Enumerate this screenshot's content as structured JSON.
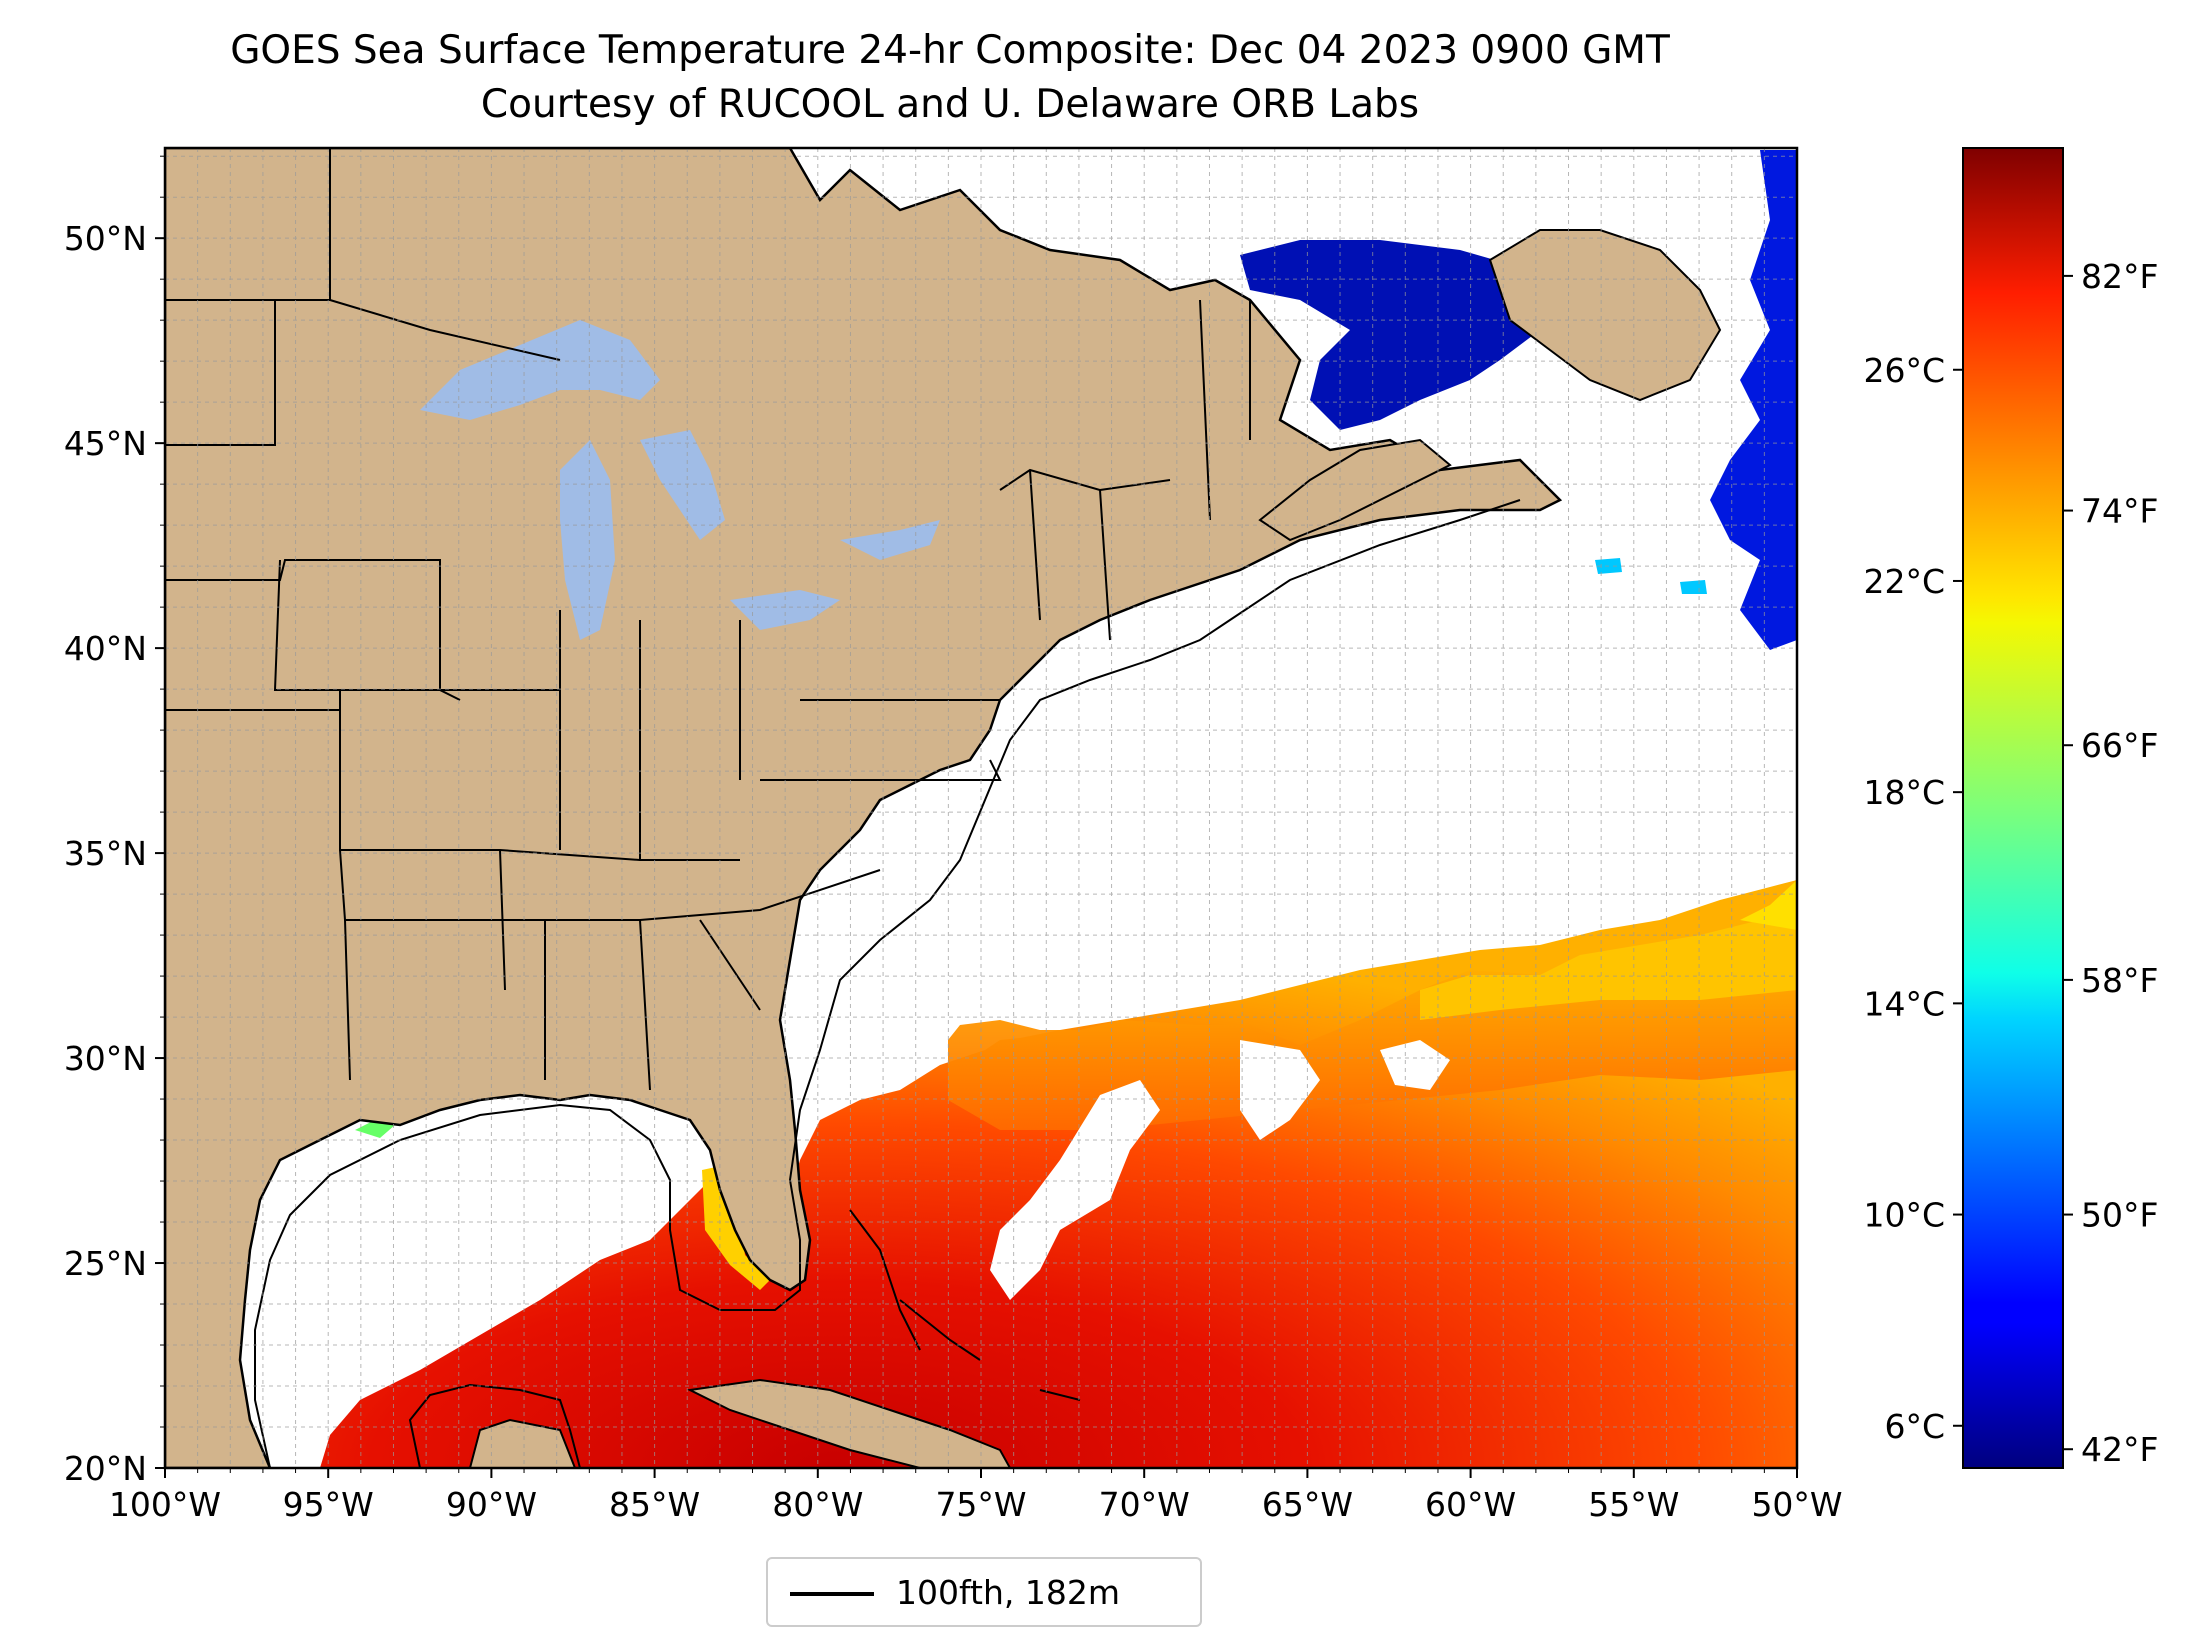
{
  "title": {
    "line1": "GOES Sea Surface Temperature 24-hr Composite: Dec 04 2023 0900 GMT",
    "line2": "Courtesy of RUCOOL and U. Delaware ORB Labs"
  },
  "map": {
    "lon_range": [
      -100,
      -50
    ],
    "lat_range": [
      20,
      52.2
    ],
    "x_ticks": [
      "100°W",
      "95°W",
      "90°W",
      "85°W",
      "80°W",
      "75°W",
      "70°W",
      "65°W",
      "60°W",
      "55°W",
      "50°W"
    ],
    "y_ticks": [
      "20°N",
      "25°N",
      "30°N",
      "35°N",
      "40°N",
      "45°N",
      "50°N"
    ],
    "y_tick_values": [
      20,
      25,
      30,
      35,
      40,
      45,
      50
    ],
    "gridlines": true,
    "land_color": "#d2b48c",
    "lake_color": "#a0bce6",
    "ocean_nodata_color": "#ffffff"
  },
  "colorbar": {
    "colormap": "jet",
    "celsius_ticks": [
      "6°C",
      "10°C",
      "14°C",
      "18°C",
      "22°C",
      "26°C"
    ],
    "celsius_values": [
      6,
      10,
      14,
      18,
      22,
      26
    ],
    "fahrenheit_ticks": [
      "42°F",
      "50°F",
      "58°F",
      "66°F",
      "74°F",
      "82°F"
    ],
    "fahrenheit_values": [
      42,
      50,
      58,
      66,
      74,
      82
    ],
    "range_c": [
      5.2,
      30.2
    ]
  },
  "legend": {
    "label": "100fth, 182m",
    "placement": "bottom-center"
  }
}
